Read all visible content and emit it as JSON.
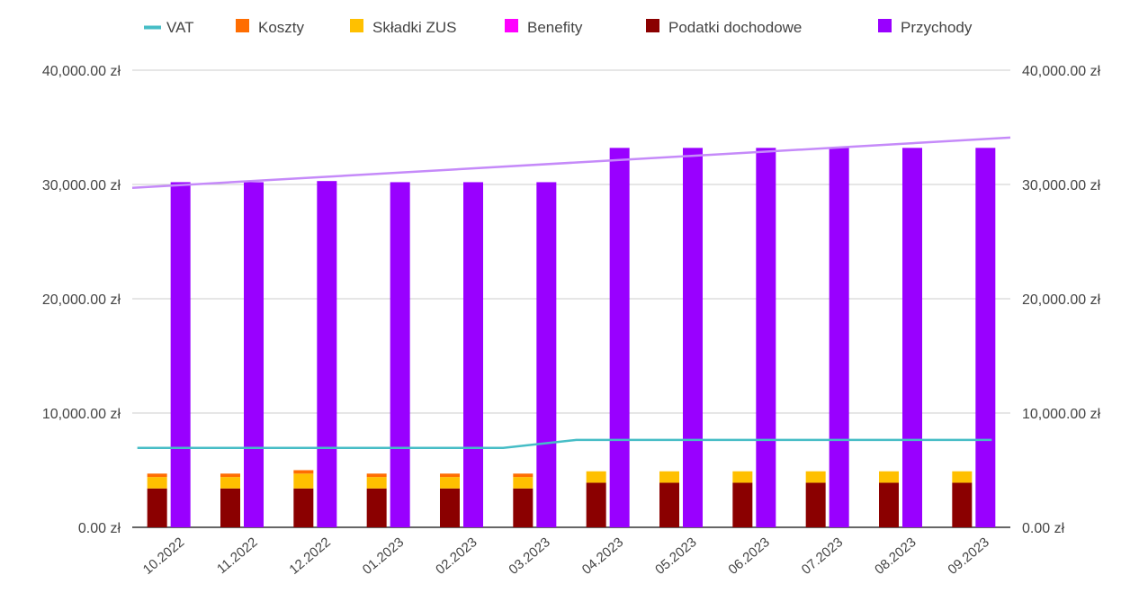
{
  "chart_data": {
    "type": "bar",
    "title": "",
    "xlabel": "",
    "ylabel": "",
    "categories": [
      "10.2022",
      "11.2022",
      "12.2022",
      "01.2023",
      "02.2023",
      "03.2023",
      "04.2023",
      "05.2023",
      "06.2023",
      "07.2023",
      "08.2023",
      "09.2023"
    ],
    "y_ticks": [
      "0.00 zł",
      "10,000.00 zł",
      "20,000.00 zł",
      "30,000.00 zł",
      "40,000.00 zł"
    ],
    "ylim": [
      0,
      40000
    ],
    "grid": true,
    "legend_position": "top",
    "stacked_bar_series": [
      {
        "name": "Podatki dochodowe",
        "color": "#8b0000",
        "values": [
          3400,
          3400,
          3400,
          3400,
          3400,
          3400,
          3900,
          3900,
          3900,
          3900,
          3900,
          3900
        ]
      },
      {
        "name": "Składki ZUS",
        "color": "#ffc000",
        "values": [
          1000,
          1000,
          1300,
          1000,
          1000,
          1000,
          1000,
          1000,
          1000,
          1000,
          1000,
          1000
        ]
      },
      {
        "name": "Koszty",
        "color": "#ff6d01",
        "values": [
          300,
          300,
          300,
          300,
          300,
          300,
          0,
          0,
          0,
          0,
          0,
          0
        ]
      },
      {
        "name": "Benefity",
        "color": "#ff00ff",
        "values": [
          0,
          0,
          0,
          0,
          0,
          0,
          0,
          0,
          0,
          0,
          0,
          0
        ]
      }
    ],
    "bar_series": [
      {
        "name": "Przychody",
        "color": "#9900ff",
        "values": [
          30200,
          30200,
          30300,
          30200,
          30200,
          30200,
          33200,
          33200,
          33200,
          33200,
          33200,
          33200
        ]
      }
    ],
    "line_series": [
      {
        "name": "VAT",
        "color": "#46bdc6",
        "values": [
          6950,
          6950,
          6950,
          6950,
          6950,
          6950,
          7650,
          7650,
          7650,
          7650,
          7650,
          7650
        ]
      }
    ],
    "trendline": {
      "series": "Przychody",
      "color": "#c58af9",
      "y_start": 29700,
      "y_end": 34100
    },
    "legend": [
      {
        "name": "VAT",
        "color": "#46bdc6",
        "symbol": "line"
      },
      {
        "name": "Koszty",
        "color": "#ff6d01",
        "symbol": "square"
      },
      {
        "name": "Składki ZUS",
        "color": "#ffc000",
        "symbol": "square"
      },
      {
        "name": "Benefity",
        "color": "#ff00ff",
        "symbol": "square"
      },
      {
        "name": "Podatki dochodowe",
        "color": "#8b0000",
        "symbol": "square"
      },
      {
        "name": "Przychody",
        "color": "#9900ff",
        "symbol": "square"
      }
    ]
  }
}
